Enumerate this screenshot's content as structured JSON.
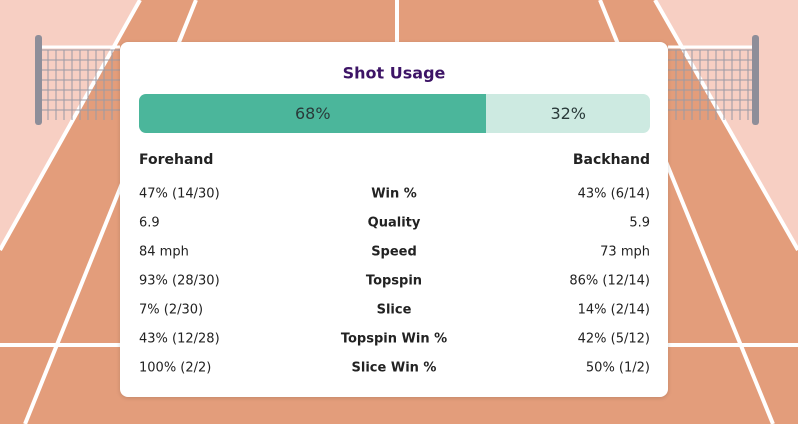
{
  "title": "Shot Usage",
  "usage": [
    {
      "value": 68,
      "label": "68%",
      "color": "#4bb69b"
    },
    {
      "value": 32,
      "label": "32%",
      "color": "#cdeae1"
    }
  ],
  "columns": {
    "left": "Forehand",
    "right": "Backhand"
  },
  "rows": [
    [
      "47% (14/30)",
      "Win %",
      "43% (6/14)"
    ],
    [
      "6.9",
      "Quality",
      "5.9"
    ],
    [
      "84 mph",
      "Speed",
      "73 mph"
    ],
    [
      "93% (28/30)",
      "Topspin",
      "86% (12/14)"
    ],
    [
      "7% (2/30)",
      "Slice",
      "14% (2/14)"
    ],
    [
      "43% (12/28)",
      "Topspin Win %",
      "42% (5/12)"
    ],
    [
      "100% (2/2)",
      "Slice Win %",
      "50% (1/2)"
    ]
  ]
}
